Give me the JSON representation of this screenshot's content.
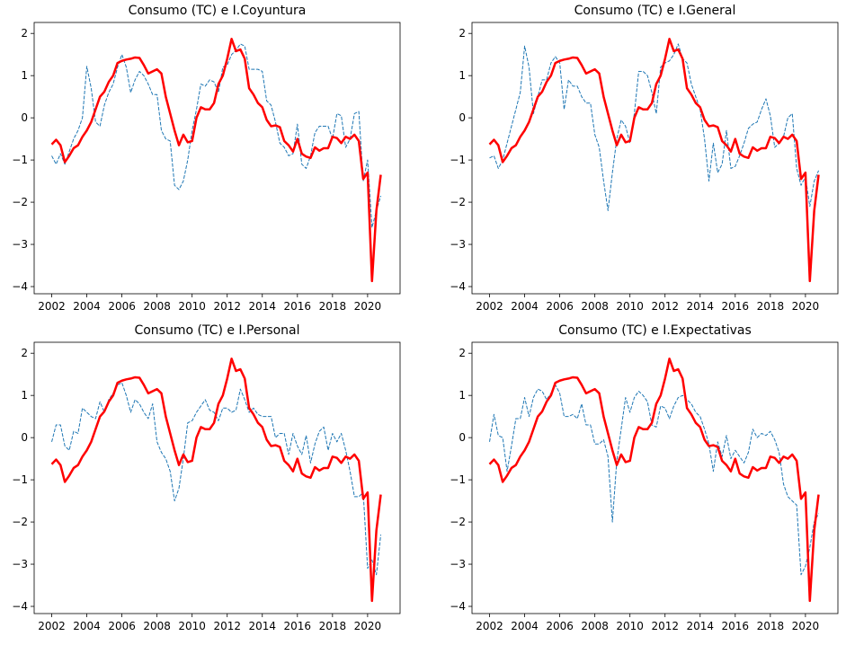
{
  "chart_data": [
    {
      "type": "line",
      "title": "Consumo (TC) e I.Coyuntura",
      "x": [
        2002,
        2002.25,
        2002.5,
        2002.75,
        2003,
        2003.25,
        2003.5,
        2003.75,
        2004,
        2004.25,
        2004.5,
        2004.75,
        2005,
        2005.25,
        2005.5,
        2005.75,
        2006,
        2006.25,
        2006.5,
        2006.75,
        2007,
        2007.25,
        2007.5,
        2007.75,
        2008,
        2008.25,
        2008.5,
        2008.75,
        2009,
        2009.25,
        2009.5,
        2009.75,
        2010,
        2010.25,
        2010.5,
        2010.75,
        2011,
        2011.25,
        2011.5,
        2011.75,
        2012,
        2012.25,
        2012.5,
        2012.75,
        2013,
        2013.25,
        2013.5,
        2013.75,
        2014,
        2014.25,
        2014.5,
        2014.75,
        2015,
        2015.25,
        2015.5,
        2015.75,
        2016,
        2016.25,
        2016.5,
        2016.75,
        2017,
        2017.25,
        2017.5,
        2017.75,
        2018,
        2018.25,
        2018.5,
        2018.75,
        2019,
        2019.25,
        2019.5,
        2019.75,
        2020,
        2020.25,
        2020.5,
        2020.75
      ],
      "series": [
        {
          "color": "#1f77b4",
          "linestyle": "dashed",
          "values": [
            -0.9,
            -1.1,
            -0.85,
            -1.1,
            -0.8,
            -0.5,
            -0.3,
            0.0,
            1.22,
            0.7,
            -0.1,
            -0.2,
            0.3,
            0.6,
            0.8,
            1.2,
            1.5,
            1.2,
            0.6,
            0.9,
            1.1,
            1.0,
            0.8,
            0.55,
            0.55,
            -0.3,
            -0.5,
            -0.55,
            -1.6,
            -1.7,
            -1.5,
            -1.0,
            -0.3,
            0.2,
            0.8,
            0.75,
            0.9,
            0.85,
            0.6,
            1.2,
            1.25,
            1.5,
            1.6,
            1.75,
            1.7,
            1.15,
            1.15,
            1.15,
            1.1,
            0.4,
            0.3,
            -0.1,
            -0.6,
            -0.7,
            -0.9,
            -0.85,
            -0.15,
            -1.1,
            -1.2,
            -0.9,
            -0.35,
            -0.2,
            -0.2,
            -0.2,
            -0.5,
            0.1,
            0.05,
            -0.7,
            -0.5,
            0.1,
            0.15,
            -1.5,
            -1.0,
            -2.6,
            -2.2,
            -1.85
          ]
        },
        {
          "color": "#ff0000",
          "linestyle": "solid",
          "values": [
            -0.63,
            -0.52,
            -0.65,
            -1.05,
            -0.9,
            -0.72,
            -0.65,
            -0.45,
            -0.3,
            -0.1,
            0.2,
            0.5,
            0.62,
            0.85,
            1.0,
            1.3,
            1.35,
            1.38,
            1.4,
            1.43,
            1.42,
            1.25,
            1.05,
            1.1,
            1.15,
            1.05,
            0.5,
            0.1,
            -0.3,
            -0.65,
            -0.4,
            -0.58,
            -0.55,
            0.0,
            0.25,
            0.2,
            0.2,
            0.35,
            0.8,
            1.0,
            1.4,
            1.87,
            1.58,
            1.62,
            1.4,
            0.7,
            0.55,
            0.35,
            0.25,
            -0.05,
            -0.2,
            -0.18,
            -0.22,
            -0.55,
            -0.65,
            -0.8,
            -0.5,
            -0.85,
            -0.92,
            -0.95,
            -0.7,
            -0.78,
            -0.72,
            -0.72,
            -0.45,
            -0.48,
            -0.6,
            -0.45,
            -0.5,
            -0.4,
            -0.55,
            -1.45,
            -1.3,
            -3.87,
            -2.2,
            -1.35
          ]
        }
      ],
      "xlim": [
        2001.0,
        2021.85
      ],
      "xticks": [
        2002,
        2004,
        2006,
        2008,
        2010,
        2012,
        2014,
        2016,
        2018,
        2020
      ],
      "ylim": [
        -4.17,
        2.26
      ],
      "yticks": [
        {
          "value": -4,
          "label": "−4"
        },
        {
          "value": -3,
          "label": "−3"
        },
        {
          "value": -2,
          "label": "−2"
        },
        {
          "value": -1,
          "label": "−1"
        },
        0,
        1,
        2
      ]
    },
    {
      "type": "line",
      "title": "Consumo (TC) e I.General",
      "x": [
        2002,
        2002.25,
        2002.5,
        2002.75,
        2003,
        2003.25,
        2003.5,
        2003.75,
        2004,
        2004.25,
        2004.5,
        2004.75,
        2005,
        2005.25,
        2005.5,
        2005.75,
        2006,
        2006.25,
        2006.5,
        2006.75,
        2007,
        2007.25,
        2007.5,
        2007.75,
        2008,
        2008.25,
        2008.5,
        2008.75,
        2009,
        2009.25,
        2009.5,
        2009.75,
        2010,
        2010.25,
        2010.5,
        2010.75,
        2011,
        2011.25,
        2011.5,
        2011.75,
        2012,
        2012.25,
        2012.5,
        2012.75,
        2013,
        2013.25,
        2013.5,
        2013.75,
        2014,
        2014.25,
        2014.5,
        2014.75,
        2015,
        2015.25,
        2015.5,
        2015.75,
        2016,
        2016.25,
        2016.5,
        2016.75,
        2017,
        2017.25,
        2017.5,
        2017.75,
        2018,
        2018.25,
        2018.5,
        2018.75,
        2019,
        2019.25,
        2019.5,
        2019.75,
        2020,
        2020.25,
        2020.5,
        2020.75
      ],
      "series": [
        {
          "color": "#1f77b4",
          "linestyle": "dashed",
          "values": [
            -0.95,
            -0.9,
            -1.2,
            -1.0,
            -0.6,
            -0.2,
            0.2,
            0.6,
            1.7,
            1.2,
            0.1,
            0.5,
            0.9,
            0.9,
            1.3,
            1.45,
            1.3,
            0.2,
            0.9,
            0.75,
            0.75,
            0.5,
            0.35,
            0.35,
            -0.4,
            -0.7,
            -1.5,
            -2.2,
            -1.3,
            -0.5,
            -0.05,
            -0.2,
            -0.6,
            0.1,
            1.1,
            1.1,
            1.0,
            0.6,
            0.1,
            1.2,
            1.3,
            1.35,
            1.5,
            1.75,
            1.4,
            1.3,
            0.8,
            0.5,
            0.2,
            -0.5,
            -1.5,
            -0.6,
            -1.3,
            -1.1,
            -0.3,
            -1.2,
            -1.15,
            -0.9,
            -0.6,
            -0.25,
            -0.15,
            -0.1,
            0.2,
            0.45,
            0.05,
            -0.7,
            -0.6,
            -0.45,
            0.0,
            0.1,
            -1.2,
            -1.6,
            -1.4,
            -2.1,
            -1.5,
            -1.25
          ]
        },
        {
          "color": "#ff0000",
          "linestyle": "solid",
          "values": [
            -0.63,
            -0.52,
            -0.65,
            -1.05,
            -0.9,
            -0.72,
            -0.65,
            -0.45,
            -0.3,
            -0.1,
            0.2,
            0.5,
            0.62,
            0.85,
            1.0,
            1.3,
            1.35,
            1.38,
            1.4,
            1.43,
            1.42,
            1.25,
            1.05,
            1.1,
            1.15,
            1.05,
            0.5,
            0.1,
            -0.3,
            -0.65,
            -0.4,
            -0.58,
            -0.55,
            0.0,
            0.25,
            0.2,
            0.2,
            0.35,
            0.8,
            1.0,
            1.4,
            1.87,
            1.58,
            1.62,
            1.4,
            0.7,
            0.55,
            0.35,
            0.25,
            -0.05,
            -0.2,
            -0.18,
            -0.22,
            -0.55,
            -0.65,
            -0.8,
            -0.5,
            -0.85,
            -0.92,
            -0.95,
            -0.7,
            -0.78,
            -0.72,
            -0.72,
            -0.45,
            -0.48,
            -0.6,
            -0.45,
            -0.5,
            -0.4,
            -0.55,
            -1.45,
            -1.3,
            -3.87,
            -2.2,
            -1.35
          ]
        }
      ],
      "xlim": [
        2001.0,
        2021.85
      ],
      "xticks": [
        2002,
        2004,
        2006,
        2008,
        2010,
        2012,
        2014,
        2016,
        2018,
        2020
      ],
      "ylim": [
        -4.17,
        2.26
      ],
      "yticks": [
        {
          "value": -4,
          "label": "−4"
        },
        {
          "value": -3,
          "label": "−3"
        },
        {
          "value": -2,
          "label": "−2"
        },
        {
          "value": -1,
          "label": "−1"
        },
        0,
        1,
        2
      ]
    },
    {
      "type": "line",
      "title": "Consumo (TC) e I.Personal",
      "x": [
        2002,
        2002.25,
        2002.5,
        2002.75,
        2003,
        2003.25,
        2003.5,
        2003.75,
        2004,
        2004.25,
        2004.5,
        2004.75,
        2005,
        2005.25,
        2005.5,
        2005.75,
        2006,
        2006.25,
        2006.5,
        2006.75,
        2007,
        2007.25,
        2007.5,
        2007.75,
        2008,
        2008.25,
        2008.5,
        2008.75,
        2009,
        2009.25,
        2009.5,
        2009.75,
        2010,
        2010.25,
        2010.5,
        2010.75,
        2011,
        2011.25,
        2011.5,
        2011.75,
        2012,
        2012.25,
        2012.5,
        2012.75,
        2013,
        2013.25,
        2013.5,
        2013.75,
        2014,
        2014.25,
        2014.5,
        2014.75,
        2015,
        2015.25,
        2015.5,
        2015.75,
        2016,
        2016.25,
        2016.5,
        2016.75,
        2017,
        2017.25,
        2017.5,
        2017.75,
        2018,
        2018.25,
        2018.5,
        2018.75,
        2019,
        2019.25,
        2019.5,
        2019.75,
        2020,
        2020.25,
        2020.5,
        2020.75
      ],
      "series": [
        {
          "color": "#1f77b4",
          "linestyle": "dashed",
          "values": [
            -0.1,
            0.3,
            0.3,
            -0.2,
            -0.3,
            0.15,
            0.1,
            0.7,
            0.6,
            0.5,
            0.45,
            0.85,
            0.6,
            0.9,
            1.05,
            1.25,
            1.3,
            1.0,
            0.6,
            0.9,
            0.8,
            0.6,
            0.45,
            0.8,
            -0.1,
            -0.35,
            -0.5,
            -0.8,
            -1.5,
            -1.2,
            -0.5,
            0.35,
            0.4,
            0.6,
            0.75,
            0.9,
            0.65,
            0.6,
            0.4,
            0.7,
            0.7,
            0.6,
            0.65,
            1.15,
            0.9,
            0.6,
            0.7,
            0.55,
            0.5,
            0.5,
            0.5,
            0.0,
            0.1,
            0.1,
            -0.4,
            0.1,
            -0.2,
            -0.4,
            0.05,
            -0.6,
            -0.15,
            0.15,
            0.25,
            -0.3,
            0.1,
            -0.1,
            0.1,
            -0.3,
            -0.8,
            -1.4,
            -1.4,
            -1.3,
            -3.1,
            -2.9,
            -3.25,
            -2.3
          ]
        },
        {
          "color": "#ff0000",
          "linestyle": "solid",
          "values": [
            -0.63,
            -0.52,
            -0.65,
            -1.05,
            -0.9,
            -0.72,
            -0.65,
            -0.45,
            -0.3,
            -0.1,
            0.2,
            0.5,
            0.62,
            0.85,
            1.0,
            1.3,
            1.35,
            1.38,
            1.4,
            1.43,
            1.42,
            1.25,
            1.05,
            1.1,
            1.15,
            1.05,
            0.5,
            0.1,
            -0.3,
            -0.65,
            -0.4,
            -0.58,
            -0.55,
            0.0,
            0.25,
            0.2,
            0.2,
            0.35,
            0.8,
            1.0,
            1.4,
            1.87,
            1.58,
            1.62,
            1.4,
            0.7,
            0.55,
            0.35,
            0.25,
            -0.05,
            -0.2,
            -0.18,
            -0.22,
            -0.55,
            -0.65,
            -0.8,
            -0.5,
            -0.85,
            -0.92,
            -0.95,
            -0.7,
            -0.78,
            -0.72,
            -0.72,
            -0.45,
            -0.48,
            -0.6,
            -0.45,
            -0.5,
            -0.4,
            -0.55,
            -1.45,
            -1.3,
            -3.87,
            -2.2,
            -1.35
          ]
        }
      ],
      "xlim": [
        2001.0,
        2021.85
      ],
      "xticks": [
        2002,
        2004,
        2006,
        2008,
        2010,
        2012,
        2014,
        2016,
        2018,
        2020
      ],
      "ylim": [
        -4.17,
        2.26
      ],
      "yticks": [
        {
          "value": -4,
          "label": "−4"
        },
        {
          "value": -3,
          "label": "−3"
        },
        {
          "value": -2,
          "label": "−2"
        },
        {
          "value": -1,
          "label": "−1"
        },
        0,
        1,
        2
      ]
    },
    {
      "type": "line",
      "title": "Consumo (TC) e I.Expectativas",
      "x": [
        2002,
        2002.25,
        2002.5,
        2002.75,
        2003,
        2003.25,
        2003.5,
        2003.75,
        2004,
        2004.25,
        2004.5,
        2004.75,
        2005,
        2005.25,
        2005.5,
        2005.75,
        2006,
        2006.25,
        2006.5,
        2006.75,
        2007,
        2007.25,
        2007.5,
        2007.75,
        2008,
        2008.25,
        2008.5,
        2008.75,
        2009,
        2009.25,
        2009.5,
        2009.75,
        2010,
        2010.25,
        2010.5,
        2010.75,
        2011,
        2011.25,
        2011.5,
        2011.75,
        2012,
        2012.25,
        2012.5,
        2012.75,
        2013,
        2013.25,
        2013.5,
        2013.75,
        2014,
        2014.25,
        2014.5,
        2014.75,
        2015,
        2015.25,
        2015.5,
        2015.75,
        2016,
        2016.25,
        2016.5,
        2016.75,
        2017,
        2017.25,
        2017.5,
        2017.75,
        2018,
        2018.25,
        2018.5,
        2018.75,
        2019,
        2019.25,
        2019.5,
        2019.75,
        2020,
        2020.25,
        2020.5,
        2020.75
      ],
      "series": [
        {
          "color": "#1f77b4",
          "linestyle": "dashed",
          "values": [
            -0.1,
            0.55,
            0.05,
            0.0,
            -0.8,
            -0.2,
            0.45,
            0.45,
            0.95,
            0.5,
            0.95,
            1.15,
            1.1,
            0.9,
            1.05,
            1.25,
            1.05,
            0.5,
            0.5,
            0.55,
            0.45,
            0.8,
            0.3,
            0.3,
            -0.15,
            -0.15,
            -0.05,
            -0.45,
            -2.0,
            -0.55,
            0.2,
            0.95,
            0.6,
            0.95,
            1.1,
            1.0,
            0.85,
            0.3,
            0.25,
            0.75,
            0.7,
            0.45,
            0.75,
            0.95,
            1.0,
            0.9,
            0.8,
            0.6,
            0.5,
            0.2,
            -0.15,
            -0.8,
            -0.1,
            -0.45,
            0.05,
            -0.5,
            -0.3,
            -0.45,
            -0.6,
            -0.35,
            0.2,
            0.0,
            0.1,
            0.05,
            0.15,
            -0.05,
            -0.35,
            -1.1,
            -1.4,
            -1.5,
            -1.6,
            -3.25,
            -3.05,
            -2.6,
            -2.0,
            -1.8
          ]
        },
        {
          "color": "#ff0000",
          "linestyle": "solid",
          "values": [
            -0.63,
            -0.52,
            -0.65,
            -1.05,
            -0.9,
            -0.72,
            -0.65,
            -0.45,
            -0.3,
            -0.1,
            0.2,
            0.5,
            0.62,
            0.85,
            1.0,
            1.3,
            1.35,
            1.38,
            1.4,
            1.43,
            1.42,
            1.25,
            1.05,
            1.1,
            1.15,
            1.05,
            0.5,
            0.1,
            -0.3,
            -0.65,
            -0.4,
            -0.58,
            -0.55,
            0.0,
            0.25,
            0.2,
            0.2,
            0.35,
            0.8,
            1.0,
            1.4,
            1.87,
            1.58,
            1.62,
            1.4,
            0.7,
            0.55,
            0.35,
            0.25,
            -0.05,
            -0.2,
            -0.18,
            -0.22,
            -0.55,
            -0.65,
            -0.8,
            -0.5,
            -0.85,
            -0.92,
            -0.95,
            -0.7,
            -0.78,
            -0.72,
            -0.72,
            -0.45,
            -0.48,
            -0.6,
            -0.45,
            -0.5,
            -0.4,
            -0.55,
            -1.45,
            -1.3,
            -3.87,
            -2.2,
            -1.35
          ]
        }
      ],
      "xlim": [
        2001.0,
        2021.85
      ],
      "xticks": [
        2002,
        2004,
        2006,
        2008,
        2010,
        2012,
        2014,
        2016,
        2018,
        2020
      ],
      "ylim": [
        -4.17,
        2.26
      ],
      "yticks": [
        {
          "value": -4,
          "label": "−4"
        },
        {
          "value": -3,
          "label": "−3"
        },
        {
          "value": -2,
          "label": "−2"
        },
        {
          "value": -1,
          "label": "−1"
        },
        0,
        1,
        2
      ]
    }
  ]
}
